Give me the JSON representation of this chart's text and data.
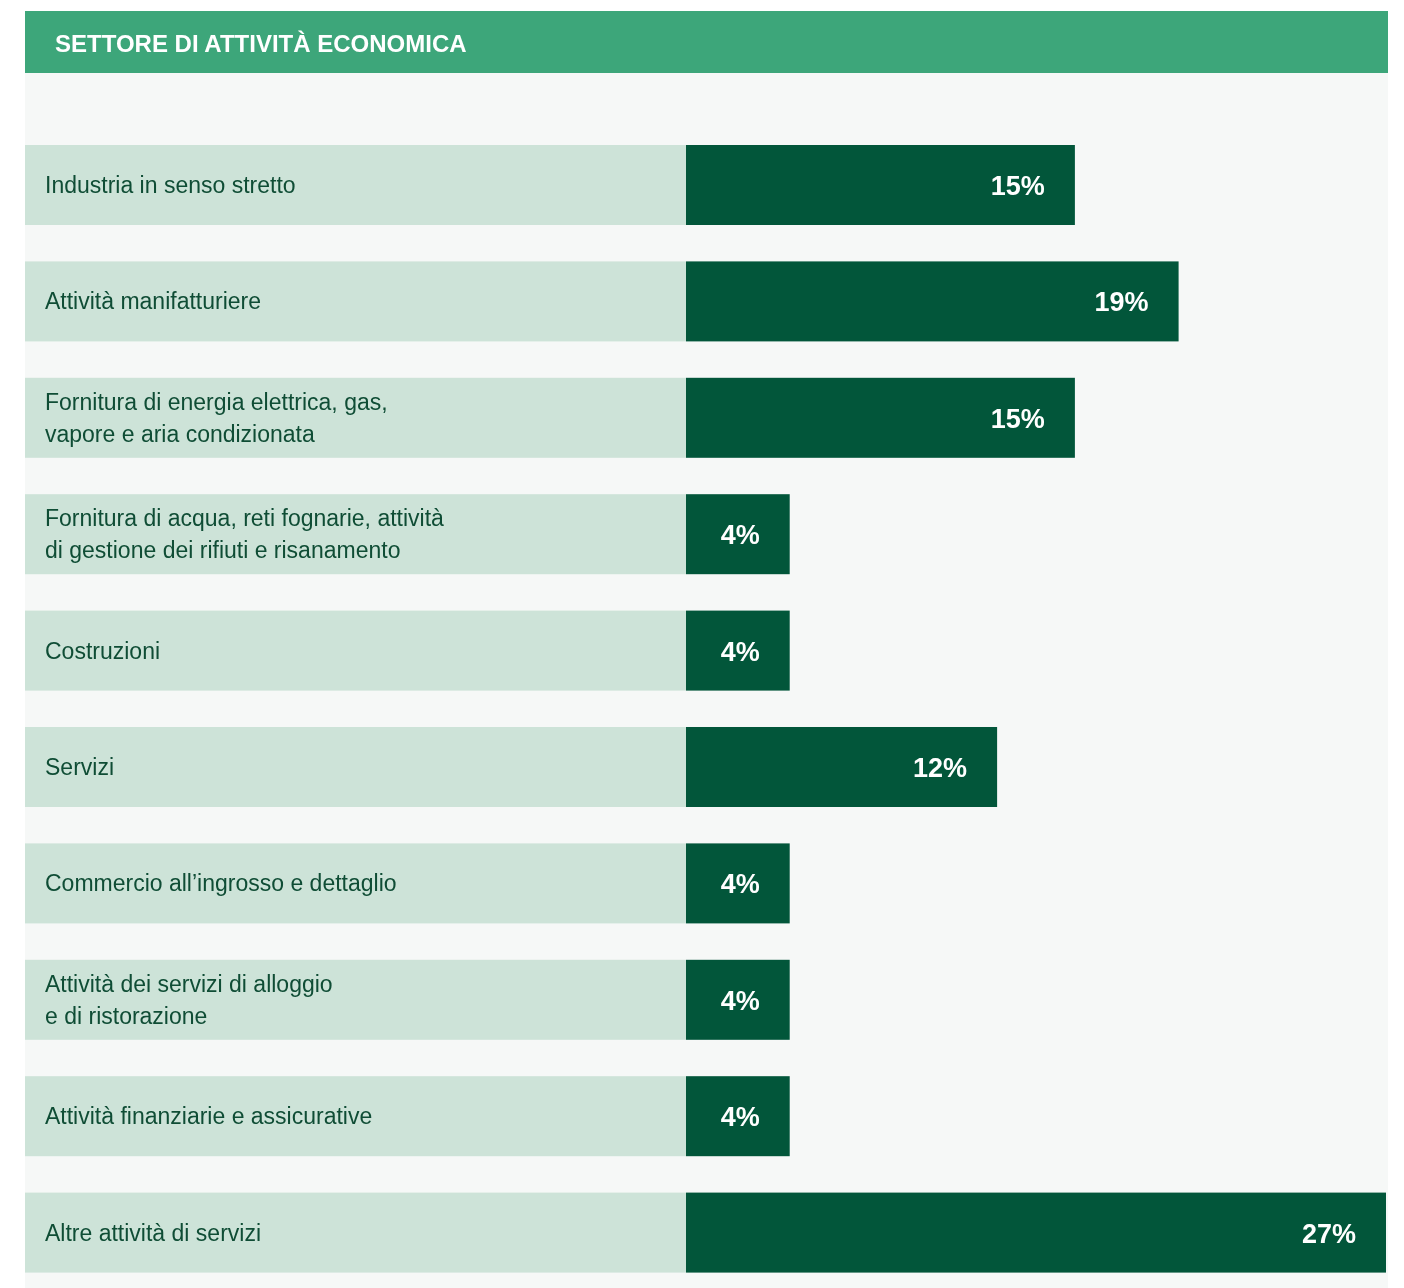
{
  "chart_data": {
    "type": "bar",
    "orientation": "horizontal",
    "title": "SETTORE DI ATTIVITÀ ECONOMICA",
    "categories": [
      "Industria in senso stretto",
      "Attività manifatturiere",
      "Fornitura di energia elettrica, gas,\nvapore e aria condizionata",
      "Fornitura di acqua, reti fognarie, attività\ndi gestione dei rifiuti e risanamento",
      "Costruzioni",
      "Servizi",
      "Commercio all’ingrosso e dettaglio",
      "Attività dei servizi di alloggio\ne di ristorazione",
      "Attività finanziarie e assicurative",
      "Altre attività di servizi"
    ],
    "values": [
      15,
      19,
      15,
      4,
      4,
      12,
      4,
      4,
      4,
      27
    ],
    "value_labels": [
      "15%",
      "19%",
      "15%",
      "4%",
      "4%",
      "12%",
      "4%",
      "4%",
      "4%",
      "27%"
    ],
    "color": "#02563a"
  }
}
